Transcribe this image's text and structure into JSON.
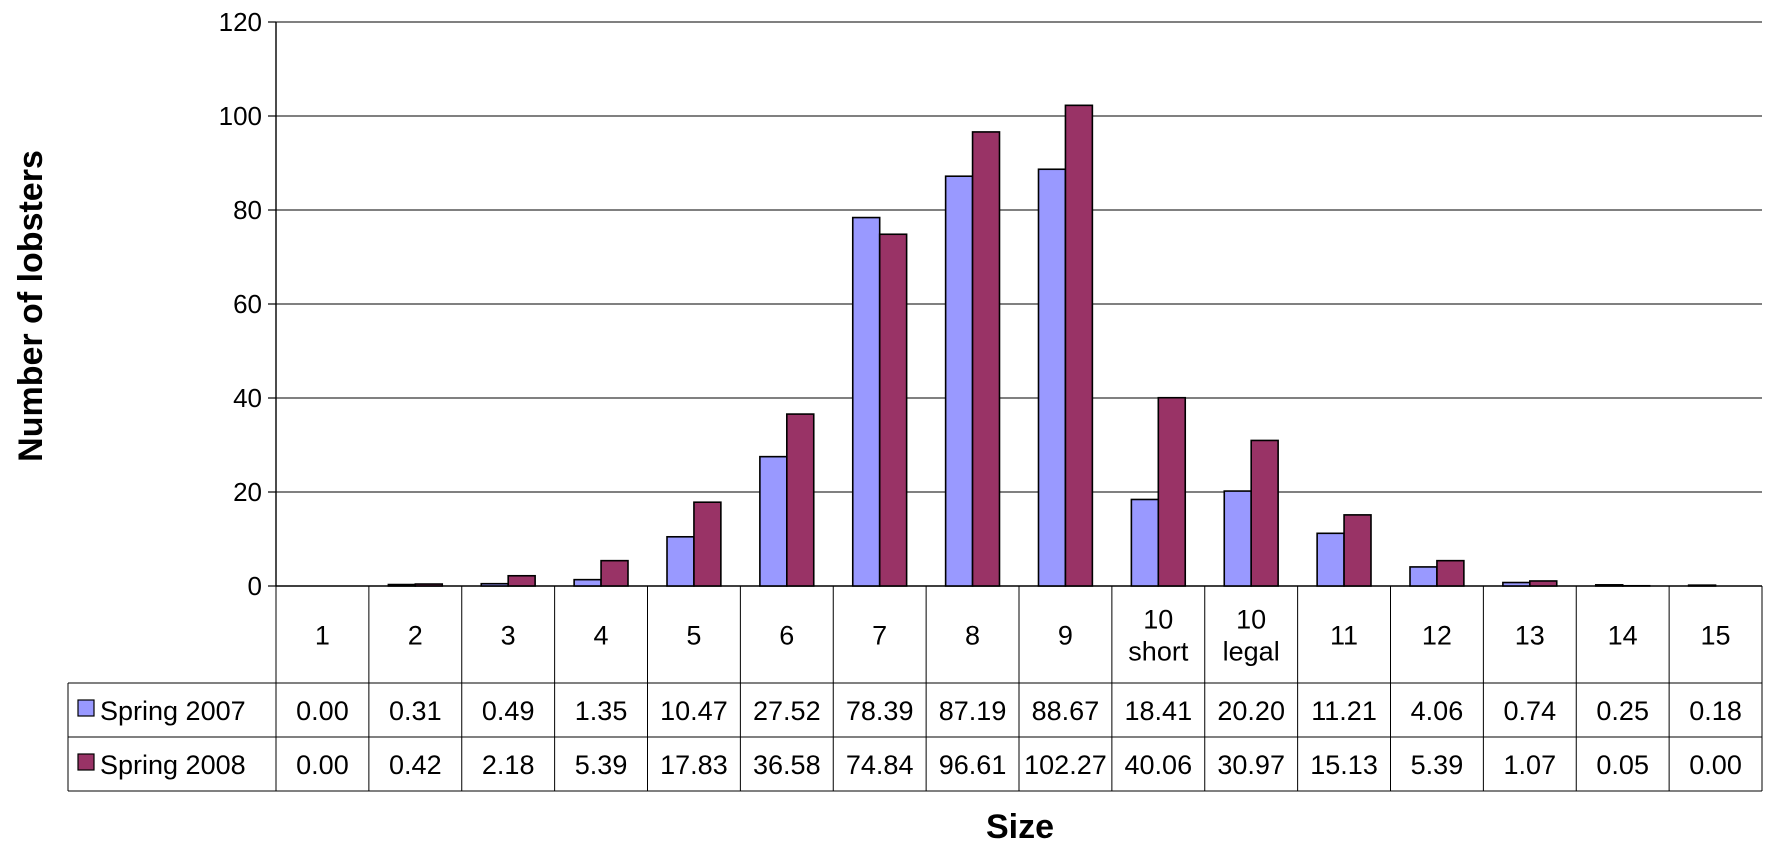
{
  "chart_data": {
    "type": "bar",
    "title": "",
    "xlabel": "Size",
    "ylabel": "Number of lobsters",
    "ylim": [
      0,
      120
    ],
    "yticks": [
      0,
      20,
      40,
      60,
      80,
      100,
      120
    ],
    "grid": true,
    "legend": "data-table-left",
    "categories": [
      [
        "1"
      ],
      [
        "2"
      ],
      [
        "3"
      ],
      [
        "4"
      ],
      [
        "5"
      ],
      [
        "6"
      ],
      [
        "7"
      ],
      [
        "8"
      ],
      [
        "9"
      ],
      [
        "10",
        "short"
      ],
      [
        "10",
        "legal"
      ],
      [
        "11"
      ],
      [
        "12"
      ],
      [
        "13"
      ],
      [
        "14"
      ],
      [
        "15"
      ]
    ],
    "series": [
      {
        "name": "Spring 2007",
        "color": "#9999ff",
        "values": [
          0.0,
          0.31,
          0.49,
          1.35,
          10.47,
          27.52,
          78.39,
          87.19,
          88.67,
          18.41,
          20.2,
          11.21,
          4.06,
          0.74,
          0.25,
          0.18
        ],
        "labels": [
          "0.00",
          "0.31",
          "0.49",
          "1.35",
          "10.47",
          "27.52",
          "78.39",
          "87.19",
          "88.67",
          "18.41",
          "20.20",
          "11.21",
          "4.06",
          "0.74",
          "0.25",
          "0.18"
        ]
      },
      {
        "name": "Spring 2008",
        "color": "#993366",
        "values": [
          0.0,
          0.42,
          2.18,
          5.39,
          17.83,
          36.58,
          74.84,
          96.61,
          102.27,
          40.06,
          30.97,
          15.13,
          5.39,
          1.07,
          0.05,
          0.0
        ],
        "labels": [
          "0.00",
          "0.42",
          "2.18",
          "5.39",
          "17.83",
          "36.58",
          "74.84",
          "96.61",
          "102.27",
          "40.06",
          "30.97",
          "15.13",
          "5.39",
          "1.07",
          "0.05",
          "0.00"
        ]
      }
    ]
  }
}
